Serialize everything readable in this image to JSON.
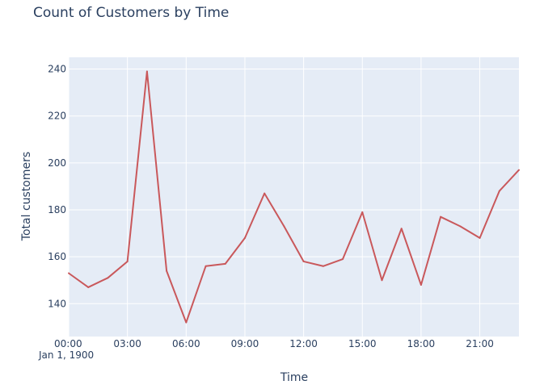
{
  "chart_data": {
    "type": "line",
    "title": "Count of Customers by Time",
    "xlabel": "Time",
    "ylabel": "Total customers",
    "x_axis": {
      "tick_labels": [
        "00:00",
        "03:00",
        "06:00",
        "09:00",
        "12:00",
        "15:00",
        "18:00",
        "21:00"
      ],
      "tick_hours": [
        0,
        3,
        6,
        9,
        12,
        15,
        18,
        21
      ],
      "date_label": "Jan 1, 1900",
      "range_hours": [
        0,
        23
      ]
    },
    "y_axis": {
      "ticks": [
        140,
        160,
        180,
        200,
        220,
        240
      ],
      "range": [
        126,
        245
      ]
    },
    "grid": true,
    "series": [
      {
        "color": "#c9585b",
        "x": [
          "00:00",
          "01:00",
          "02:00",
          "03:00",
          "04:00",
          "05:00",
          "06:00",
          "07:00",
          "08:00",
          "09:00",
          "10:00",
          "11:00",
          "12:00",
          "13:00",
          "14:00",
          "15:00",
          "16:00",
          "17:00",
          "18:00",
          "19:00",
          "20:00",
          "21:00",
          "22:00",
          "23:00"
        ],
        "values": [
          153,
          147,
          151,
          158,
          239,
          154,
          132,
          156,
          157,
          168,
          187,
          173,
          158,
          156,
          159,
          179,
          150,
          172,
          148,
          177,
          173,
          168,
          188,
          197
        ]
      }
    ],
    "colors": {
      "plot_background": "#e5ecf6",
      "grid": "#ffffff",
      "text": "#2a3f5f"
    }
  }
}
